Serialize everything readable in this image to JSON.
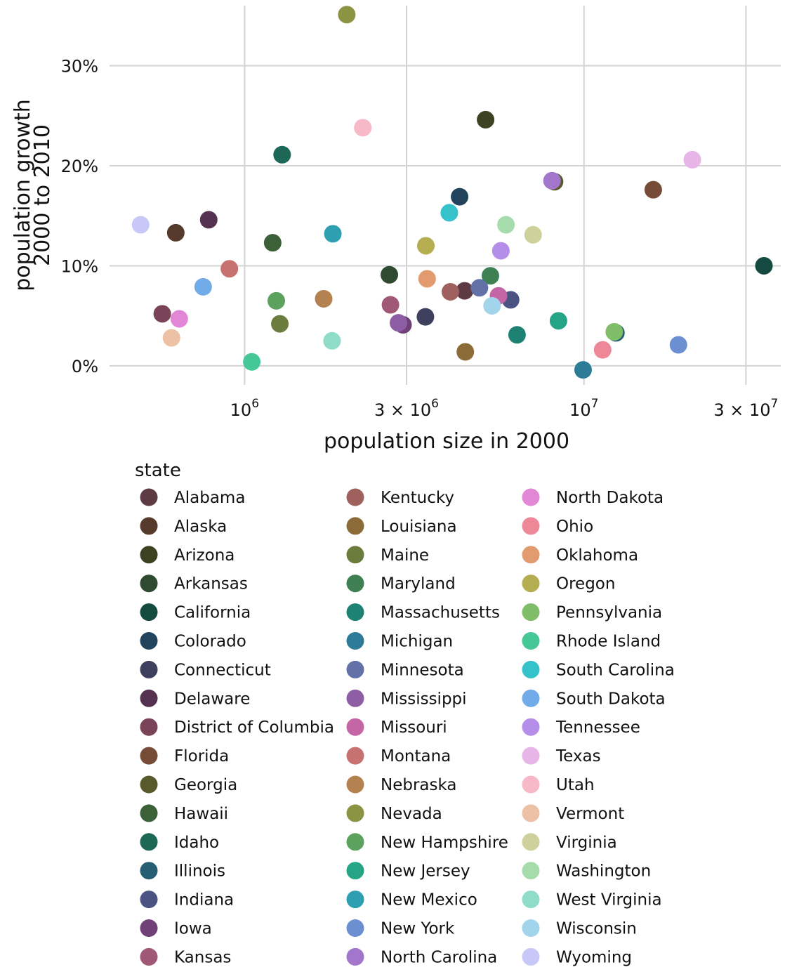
{
  "chart_data": {
    "type": "scatter",
    "title": "",
    "xlabel": "population size in 2000",
    "ylabel": [
      "population growth",
      "2000 to 2010"
    ],
    "x_scale": "log",
    "xlim": [
      400000,
      38000000
    ],
    "ylim": [
      -0.019,
      0.36
    ],
    "x_ticks": [
      {
        "value": 1000000,
        "base": "10",
        "exp": "6"
      },
      {
        "value": 3000000,
        "mult": "3 × ",
        "base": "10",
        "exp": "6"
      },
      {
        "value": 10000000,
        "base": "10",
        "exp": "7"
      },
      {
        "value": 30000000,
        "mult": "3 × ",
        "base": "10",
        "exp": "7"
      }
    ],
    "y_ticks": [
      {
        "value": 0.0,
        "label": "0%"
      },
      {
        "value": 0.1,
        "label": "10%"
      },
      {
        "value": 0.2,
        "label": "20%"
      },
      {
        "value": 0.3,
        "label": "30%"
      }
    ],
    "grid": true,
    "legend_title": "state",
    "legend_position": "bottom",
    "legend_columns": 3,
    "series": [
      {
        "name": "Alabama",
        "color": "#5e3a45",
        "x": 4450000,
        "y": 0.075
      },
      {
        "name": "Alaska",
        "color": "#563b2c",
        "x": 627000,
        "y": 0.133
      },
      {
        "name": "Arizona",
        "color": "#3d4223",
        "x": 5130000,
        "y": 0.246
      },
      {
        "name": "Arkansas",
        "color": "#2e4a31",
        "x": 2670000,
        "y": 0.091
      },
      {
        "name": "California",
        "color": "#154a40",
        "x": 33900000,
        "y": 0.1
      },
      {
        "name": "Colorado",
        "color": "#21445c",
        "x": 4300000,
        "y": 0.169
      },
      {
        "name": "Connecticut",
        "color": "#3f3f5e",
        "x": 3410000,
        "y": 0.049
      },
      {
        "name": "Delaware",
        "color": "#55324f",
        "x": 784000,
        "y": 0.146
      },
      {
        "name": "District of Columbia",
        "color": "#7a4358",
        "x": 572000,
        "y": 0.052
      },
      {
        "name": "Florida",
        "color": "#764c36",
        "x": 16000000,
        "y": 0.176
      },
      {
        "name": "Georgia",
        "color": "#585a2c",
        "x": 8190000,
        "y": 0.184
      },
      {
        "name": "Hawaii",
        "color": "#3c6138",
        "x": 1210000,
        "y": 0.123
      },
      {
        "name": "Idaho",
        "color": "#1d6757",
        "x": 1290000,
        "y": 0.211
      },
      {
        "name": "Illinois",
        "color": "#265e73",
        "x": 12420000,
        "y": 0.033
      },
      {
        "name": "Indiana",
        "color": "#4a5382",
        "x": 6080000,
        "y": 0.066
      },
      {
        "name": "Iowa",
        "color": "#6f4176",
        "x": 2930000,
        "y": 0.041
      },
      {
        "name": "Kansas",
        "color": "#a05877",
        "x": 2690000,
        "y": 0.061
      },
      {
        "name": "Kentucky",
        "color": "#a0605d",
        "x": 4040000,
        "y": 0.074
      },
      {
        "name": "Louisiana",
        "color": "#8b6b38",
        "x": 4470000,
        "y": 0.014
      },
      {
        "name": "Maine",
        "color": "#6b7c3d",
        "x": 1270000,
        "y": 0.042
      },
      {
        "name": "Maryland",
        "color": "#3e8052",
        "x": 5300000,
        "y": 0.09
      },
      {
        "name": "Massachusetts",
        "color": "#1d8274",
        "x": 6350000,
        "y": 0.031
      },
      {
        "name": "Michigan",
        "color": "#2e7b98",
        "x": 9940000,
        "y": -0.004
      },
      {
        "name": "Minnesota",
        "color": "#6271a8",
        "x": 4920000,
        "y": 0.078
      },
      {
        "name": "Mississippi",
        "color": "#8e5ea4",
        "x": 2840000,
        "y": 0.043
      },
      {
        "name": "Missouri",
        "color": "#c465a6",
        "x": 5600000,
        "y": 0.07
      },
      {
        "name": "Montana",
        "color": "#c87171",
        "x": 902000,
        "y": 0.097
      },
      {
        "name": "Nebraska",
        "color": "#b48250",
        "x": 1710000,
        "y": 0.067
      },
      {
        "name": "Nevada",
        "color": "#8b9443",
        "x": 2000000,
        "y": 0.351
      },
      {
        "name": "New Hampshire",
        "color": "#5ca25e",
        "x": 1240000,
        "y": 0.065
      },
      {
        "name": "New Jersey",
        "color": "#26a486",
        "x": 8410000,
        "y": 0.045
      },
      {
        "name": "New Mexico",
        "color": "#2e9fb1",
        "x": 1820000,
        "y": 0.132
      },
      {
        "name": "New York",
        "color": "#6b8fd0",
        "x": 18980000,
        "y": 0.021
      },
      {
        "name": "North Carolina",
        "color": "#a176cb",
        "x": 8050000,
        "y": 0.185
      },
      {
        "name": "North Dakota",
        "color": "#e287d5",
        "x": 642000,
        "y": 0.047
      },
      {
        "name": "Ohio",
        "color": "#ee8797",
        "x": 11350000,
        "y": 0.016
      },
      {
        "name": "Oklahoma",
        "color": "#e19b6e",
        "x": 3450000,
        "y": 0.087
      },
      {
        "name": "Oregon",
        "color": "#b5ae51",
        "x": 3420000,
        "y": 0.12
      },
      {
        "name": "Pennsylvania",
        "color": "#7fbd68",
        "x": 12280000,
        "y": 0.034
      },
      {
        "name": "Rhode Island",
        "color": "#45c797",
        "x": 1050000,
        "y": 0.004
      },
      {
        "name": "South Carolina",
        "color": "#35c2cb",
        "x": 4010000,
        "y": 0.153
      },
      {
        "name": "South Dakota",
        "color": "#72ace8",
        "x": 755000,
        "y": 0.079
      },
      {
        "name": "Tennessee",
        "color": "#b58ee9",
        "x": 5690000,
        "y": 0.115
      },
      {
        "name": "Texas",
        "color": "#e8b5e8",
        "x": 20850000,
        "y": 0.206
      },
      {
        "name": "Utah",
        "color": "#f7b8c8",
        "x": 2230000,
        "y": 0.238
      },
      {
        "name": "Vermont",
        "color": "#ecc1a5",
        "x": 609000,
        "y": 0.028
      },
      {
        "name": "Virginia",
        "color": "#cfd19c",
        "x": 7080000,
        "y": 0.131
      },
      {
        "name": "Washington",
        "color": "#a6dbab",
        "x": 5890000,
        "y": 0.141
      },
      {
        "name": "West Virginia",
        "color": "#8fdcc9",
        "x": 1810000,
        "y": 0.025
      },
      {
        "name": "Wisconsin",
        "color": "#a2d4eb",
        "x": 5360000,
        "y": 0.06
      },
      {
        "name": "Wyoming",
        "color": "#c8c8f8",
        "x": 494000,
        "y": 0.141
      }
    ]
  }
}
